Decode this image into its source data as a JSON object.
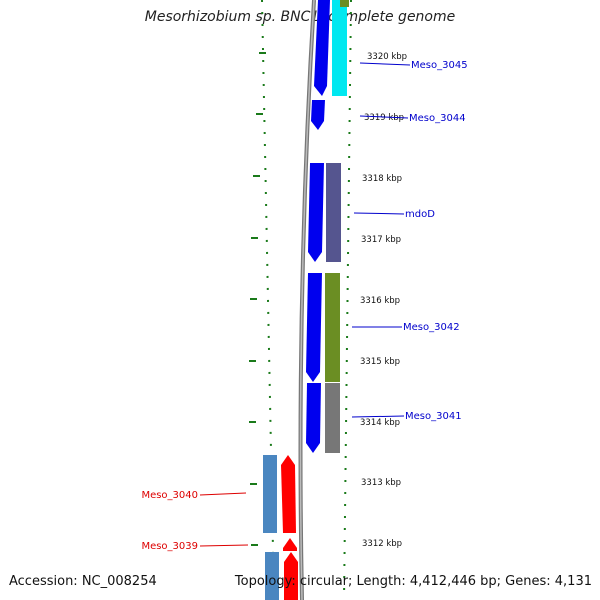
{
  "title": "Mesorhizobium sp. BNC1, complete genome",
  "footer": {
    "accession": "Accession: NC_008254",
    "info": "Topology: circular; Length: 4,412,446 bp; Genes: 4,131"
  },
  "colors": {
    "forward_cds": "#0000ee",
    "reverse_cds": "#ff0000",
    "tick": "#1a7a1a",
    "forward_label": "#0000cc",
    "reverse_label": "#dd0000",
    "backbone": "#888888",
    "cyan_cog": "#00ffff",
    "purple_cog": "#55558f",
    "olive_cog": "#6b8e23",
    "gray_cog": "#777777",
    "steel_cog": "#4a86c0"
  },
  "scale": {
    "unit": "kbp",
    "ticks": [
      {
        "kbp": 3320,
        "label": "3320 kbp"
      },
      {
        "kbp": 3319,
        "label": "3319 kbp"
      },
      {
        "kbp": 3318,
        "label": "3318 kbp"
      },
      {
        "kbp": 3317,
        "label": "3317 kbp"
      },
      {
        "kbp": 3316,
        "label": "3316 kbp"
      },
      {
        "kbp": 3315,
        "label": "3315 kbp"
      },
      {
        "kbp": 3314,
        "label": "3314 kbp"
      },
      {
        "kbp": 3313,
        "label": "3313 kbp"
      },
      {
        "kbp": 3312,
        "label": "3312 kbp"
      }
    ]
  },
  "genes": [
    {
      "name": "Meso_3045",
      "strand": "forward",
      "cog": "cyan_cog"
    },
    {
      "name": "Meso_3044",
      "strand": "forward",
      "cog": ""
    },
    {
      "name": "mdoD",
      "strand": "forward",
      "cog": "purple_cog"
    },
    {
      "name": "Meso_3042",
      "strand": "forward",
      "cog": "olive_cog"
    },
    {
      "name": "Meso_3041",
      "strand": "forward",
      "cog": "gray_cog"
    },
    {
      "name": "Meso_3040",
      "strand": "reverse",
      "cog": "steel_cog"
    },
    {
      "name": "Meso_3039",
      "strand": "reverse",
      "cog": "steel_cog"
    }
  ]
}
